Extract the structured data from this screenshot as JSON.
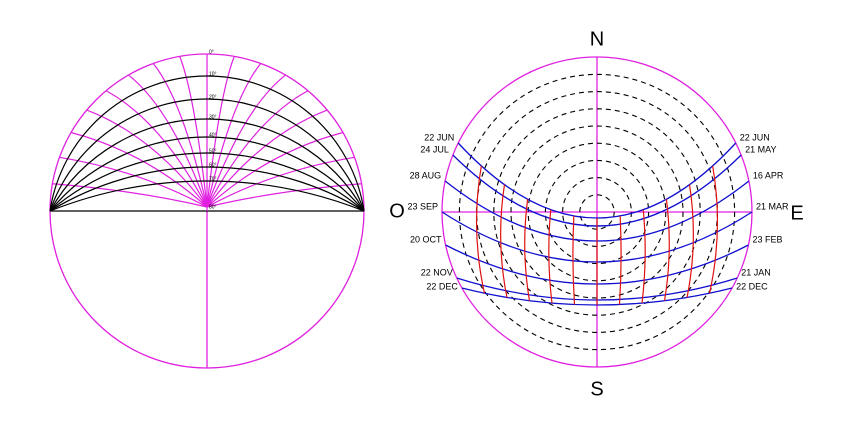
{
  "left_diagram": {
    "degree_labels": [
      "0°",
      "10°",
      "20°",
      "30°",
      "40°",
      "50°",
      "60°",
      "70°",
      "80°"
    ]
  },
  "right_diagram": {
    "north": "N",
    "south": "S",
    "west": "O",
    "east": "E",
    "dates_left": [
      "22 JUN",
      "24 JUL",
      "28 AUG",
      "23 SEP",
      "20 OCT",
      "22 NOV",
      "22 DEC"
    ],
    "dates_right": [
      "22 JUN",
      "21 MAY",
      "16 APR",
      "21 MAR",
      "23 FEB",
      "21 JAN",
      "22 DEC"
    ]
  }
}
